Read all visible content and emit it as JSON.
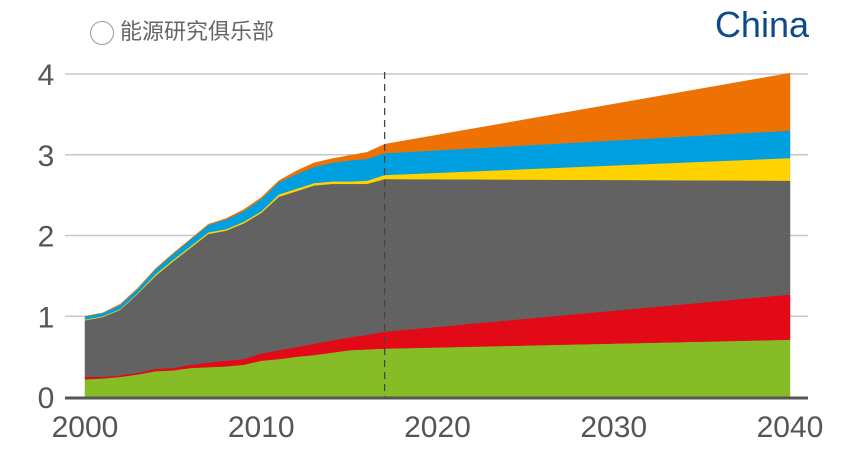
{
  "chart_data": {
    "type": "area",
    "stacked": true,
    "title": "China",
    "xlabel": "",
    "ylabel": "",
    "ylim": [
      0,
      4
    ],
    "xlim": [
      2000,
      2040
    ],
    "yticks": [
      "0",
      "1",
      "2",
      "3",
      "4"
    ],
    "xticks": [
      "2000",
      "2010",
      "2020",
      "2030",
      "2040"
    ],
    "grid": true,
    "projection_start": 2017,
    "x": [
      2000,
      2001,
      2002,
      2003,
      2004,
      2005,
      2006,
      2007,
      2008,
      2009,
      2010,
      2011,
      2012,
      2013,
      2014,
      2015,
      2016,
      2017,
      2040
    ],
    "series": [
      {
        "color": "#86bc25",
        "values": [
          0.22,
          0.23,
          0.25,
          0.28,
          0.32,
          0.33,
          0.36,
          0.37,
          0.38,
          0.4,
          0.45,
          0.47,
          0.5,
          0.52,
          0.55,
          0.58,
          0.59,
          0.6,
          0.71
        ]
      },
      {
        "color": "#e20a16",
        "values": [
          0.03,
          0.02,
          0.02,
          0.02,
          0.03,
          0.03,
          0.04,
          0.06,
          0.07,
          0.07,
          0.09,
          0.11,
          0.12,
          0.14,
          0.15,
          0.16,
          0.18,
          0.21,
          0.56
        ]
      },
      {
        "color": "#626262",
        "values": [
          0.7,
          0.74,
          0.81,
          0.98,
          1.15,
          1.32,
          1.45,
          1.59,
          1.61,
          1.68,
          1.74,
          1.9,
          1.93,
          1.96,
          1.94,
          1.9,
          1.87,
          1.89,
          1.41
        ]
      },
      {
        "color": "#ffd200",
        "values": [
          0.01,
          0.01,
          0.01,
          0.01,
          0.02,
          0.02,
          0.02,
          0.02,
          0.02,
          0.02,
          0.02,
          0.03,
          0.03,
          0.03,
          0.03,
          0.03,
          0.04,
          0.05,
          0.28
        ]
      },
      {
        "color": "#009fe0",
        "values": [
          0.04,
          0.04,
          0.05,
          0.05,
          0.06,
          0.07,
          0.08,
          0.09,
          0.12,
          0.13,
          0.15,
          0.15,
          0.18,
          0.2,
          0.23,
          0.26,
          0.27,
          0.27,
          0.34
        ]
      },
      {
        "color": "#ed7203",
        "values": [
          0.0,
          0.0,
          0.01,
          0.01,
          0.01,
          0.01,
          0.01,
          0.01,
          0.01,
          0.02,
          0.02,
          0.02,
          0.04,
          0.05,
          0.05,
          0.06,
          0.08,
          0.11,
          0.71
        ]
      }
    ]
  },
  "watermark": "能源研究俱乐部"
}
